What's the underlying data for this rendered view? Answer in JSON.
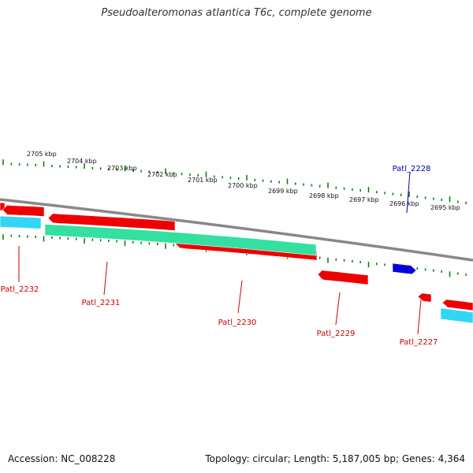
{
  "title": "Pseudoalteromonas atlantica T6c, complete genome",
  "footer": {
    "accession": "Accession: NC_008228",
    "topology": "Topology: circular; Length: 5,187,005 bp; Genes: 4,364"
  },
  "colors": {
    "forward_gene": "#0000dd",
    "reverse_gene": "#ee0000",
    "label_reverse": "#cc0000",
    "label_forward": "#0000aa",
    "cds_cyan": "#33d6f2",
    "cds_green": "#33e0a0",
    "backbone": "#888888",
    "tick": "#007700"
  },
  "scale_labels": [
    "2705 kbp",
    "2704 kbp",
    "2703 kbp",
    "2702 kbp",
    "2701 kbp",
    "2700 kbp",
    "2699 kbp",
    "2698 kbp",
    "2697 kbp",
    "2696 kbp",
    "2695 kbp"
  ],
  "gene_labels": [
    {
      "text": "Patl_2232",
      "strand": "reverse"
    },
    {
      "text": "Patl_2231",
      "strand": "reverse"
    },
    {
      "text": "Patl_2230",
      "strand": "reverse"
    },
    {
      "text": "Patl_2229",
      "strand": "reverse"
    },
    {
      "text": "Patl_2228",
      "strand": "forward"
    },
    {
      "text": "Patl_2227",
      "strand": "reverse"
    }
  ]
}
